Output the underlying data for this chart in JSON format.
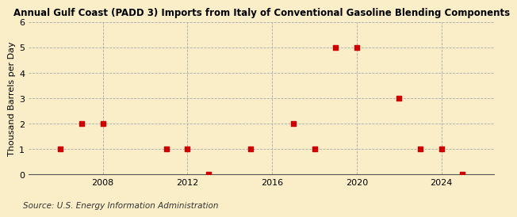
{
  "title": "Annual Gulf Coast (PADD 3) Imports from Italy of Conventional Gasoline Blending Components",
  "ylabel": "Thousand Barrels per Day",
  "source": "Source: U.S. Energy Information Administration",
  "background_color": "#faeec8",
  "plot_background_color": "#faeec8",
  "marker_color": "#cc0000",
  "years": [
    2006,
    2007,
    2008,
    2011,
    2012,
    2013,
    2015,
    2017,
    2018,
    2019,
    2020,
    2022,
    2023,
    2024,
    2025
  ],
  "values": [
    1,
    2,
    2,
    1,
    1,
    0,
    1,
    2,
    1,
    5,
    5,
    3,
    1,
    1,
    0
  ],
  "xlim": [
    2004.5,
    2026.5
  ],
  "ylim": [
    0,
    6
  ],
  "yticks": [
    0,
    1,
    2,
    3,
    4,
    5,
    6
  ],
  "xticks": [
    2008,
    2012,
    2016,
    2020,
    2024
  ],
  "title_fontsize": 8.5,
  "axis_fontsize": 8,
  "source_fontsize": 7.5
}
